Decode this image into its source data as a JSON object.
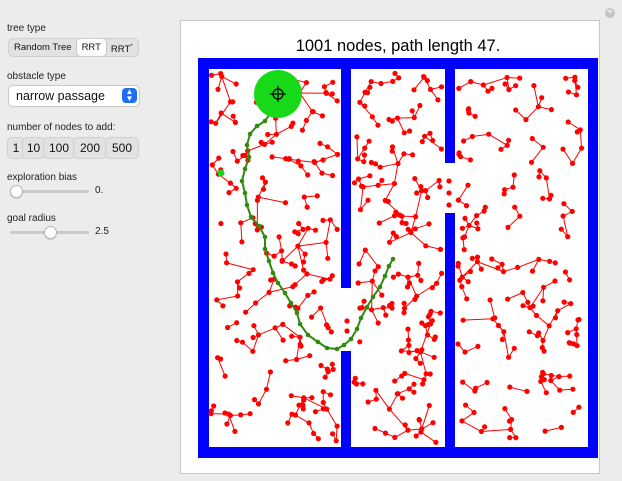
{
  "controls": {
    "tree_type": {
      "label": "tree type",
      "options": [
        "Random Tree",
        "RRT",
        "RRT"
      ],
      "rrt_star_sup": "*",
      "selected": "RRT"
    },
    "obstacle_type": {
      "label": "obstacle type",
      "selected": "narrow passage",
      "arrow": "⌃⌄"
    },
    "nodes_to_add": {
      "label": "number of nodes to add:",
      "buttons": [
        "1",
        "10",
        "100",
        "200",
        "500"
      ]
    },
    "exploration_bias": {
      "label": "exploration bias",
      "value": "0.",
      "level": 0
    },
    "goal_radius": {
      "label": "goal radius",
      "value": "2.5",
      "level": 0.5
    }
  },
  "plot": {
    "title": "1001 nodes, path length 47.",
    "wall_color": "#0000ff",
    "node_color": "#ff0000",
    "path_color": "#2f8a0f",
    "goal_color": "#17d917",
    "start_color": "#17d917"
  },
  "window": {
    "expand_icon": "plus-icon",
    "plus_glyph": "+"
  }
}
